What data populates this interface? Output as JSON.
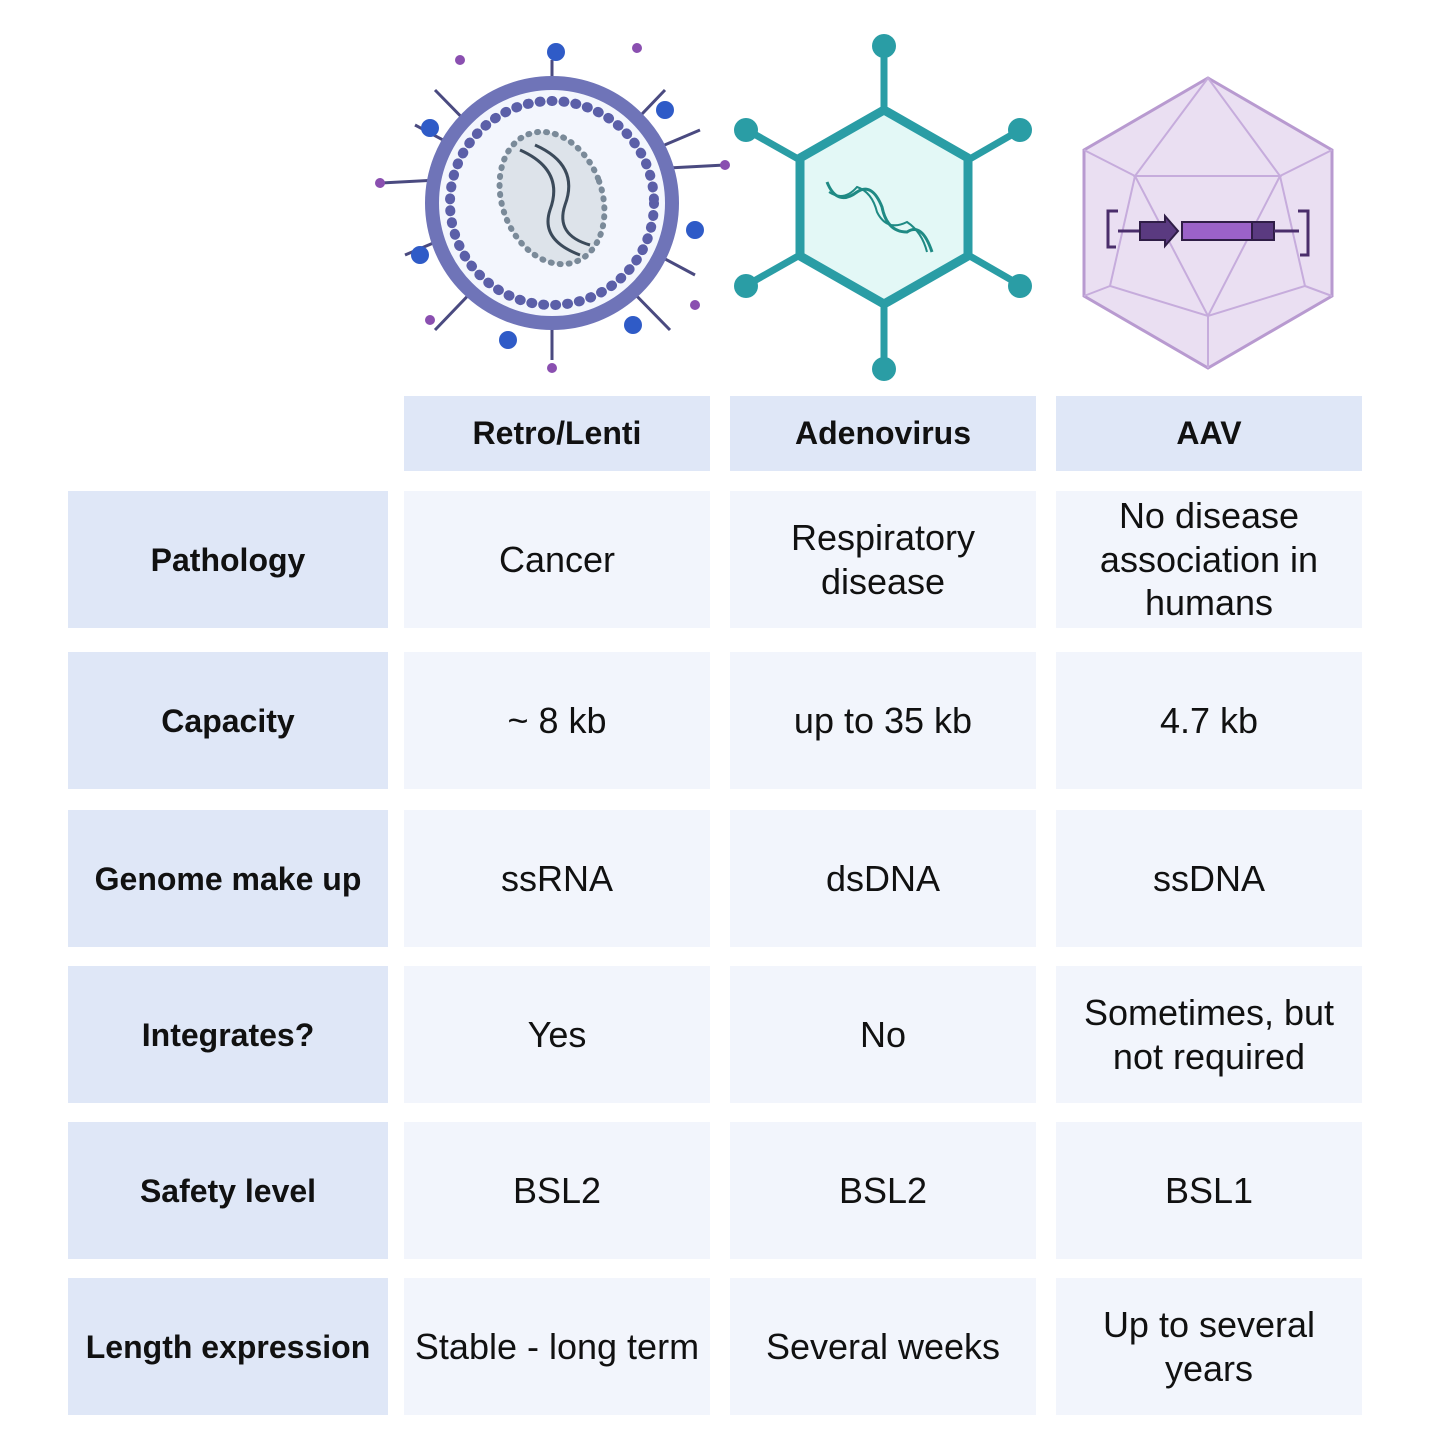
{
  "columns": [
    "Retro/Lenti",
    "Adenovirus",
    "AAV"
  ],
  "rows": [
    {
      "label": "Pathology",
      "values": [
        "Cancer",
        "Respiratory disease",
        "No disease association in humans"
      ]
    },
    {
      "label": "Capacity",
      "values": [
        "~ 8 kb",
        "up to 35 kb",
        "4.7 kb"
      ]
    },
    {
      "label": "Genome make up",
      "values": [
        "ssRNA",
        "dsDNA",
        "ssDNA"
      ]
    },
    {
      "label": "Integrates?",
      "values": [
        "Yes",
        "No",
        "Sometimes, but not required"
      ]
    },
    {
      "label": "Safety level",
      "values": [
        "BSL2",
        "BSL2",
        "BSL1"
      ]
    },
    {
      "label": "Length expression",
      "values": [
        "Stable - long term",
        "Several weeks",
        "Up to several years"
      ]
    }
  ],
  "illustrations": [
    "retrovirus-icon",
    "adenovirus-icon",
    "aav-capsid-icon"
  ],
  "colors": {
    "header_bg": "#dfe7f7",
    "cell_bg": "#f2f5fc",
    "retro": "#5b5fa8",
    "adeno": "#2a9da5",
    "aav": "#b89ad0"
  }
}
